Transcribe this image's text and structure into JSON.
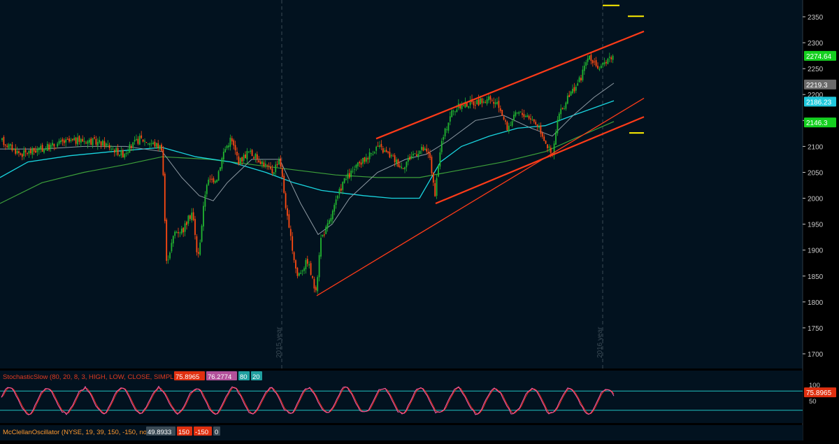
{
  "colors": {
    "background": "#000000",
    "panel": "#02121f",
    "grid": "#3a4a55",
    "frame": "#2b3a46",
    "up_candle": "#22b530",
    "down_candle": "#ff4a12",
    "trendline": "#ff3b18",
    "ma_fast": "#19d6e0",
    "ma_slow": "#3da03a",
    "ma_grey": "#8e9aa3",
    "stoch_k": "#f060b0",
    "stoch_d": "#ff3020",
    "stoch_level": "#20c0c0",
    "marker": "#ffee00",
    "label_green": "#15d020",
    "label_grey": "#6a6a6a",
    "label_cyan": "#20c8dc",
    "label_red": "#e03010",
    "axis_text": "#c8c8c8"
  },
  "price_axis": {
    "ticks": [
      "2350",
      "2300",
      "2250",
      "2200",
      "2150",
      "2100",
      "2050",
      "2000",
      "1950",
      "1900",
      "1850",
      "1800",
      "1750",
      "1700"
    ],
    "labels": [
      {
        "text": "2274.64",
        "value": 2274.64,
        "color_key": "label_green"
      },
      {
        "text": "2219.3",
        "value": 2219.3,
        "color_key": "label_grey"
      },
      {
        "text": "2186.23",
        "value": 2186.23,
        "color_key": "label_cyan"
      },
      {
        "text": "2146.3",
        "value": 2146.3,
        "color_key": "label_green"
      }
    ]
  },
  "year_markers": [
    "2015 year",
    "2016 year"
  ],
  "stochastic": {
    "header": [
      "StochasticSlow (80, 20, 8, 3, HIGH, LOW, CLOSE, SIMPLE)",
      "75.8965",
      "76.2774",
      "80",
      "20"
    ],
    "axis_ticks": [
      "100",
      "50"
    ],
    "value_label": "75.8965",
    "levels": [
      80,
      20
    ]
  },
  "mcclellan": {
    "header": [
      "McClellanOscillator (NYSE, 19, 39, 150, -150, no)",
      "49.8933",
      "150",
      "-150",
      "0"
    ]
  },
  "chart_data": {
    "type": "candlestick",
    "title": "",
    "y_range": [
      1680,
      2380
    ],
    "last_close": 2274.64,
    "moving_averages": [
      {
        "color_key": "ma_grey",
        "last": 2219.3
      },
      {
        "color_key": "ma_fast",
        "last": 2186.23
      },
      {
        "color_key": "ma_slow",
        "last": 2146.3
      }
    ],
    "key_levels": [
      {
        "label": "2015 low",
        "value": 1812
      },
      {
        "label": "2016 low",
        "value": 1995
      },
      {
        "label": "2016 high",
        "value": 2280
      }
    ],
    "stoch_oscillator": {
      "k_last": 75.8965,
      "d_last": 76.2774,
      "upper": 80,
      "lower": 20
    }
  }
}
